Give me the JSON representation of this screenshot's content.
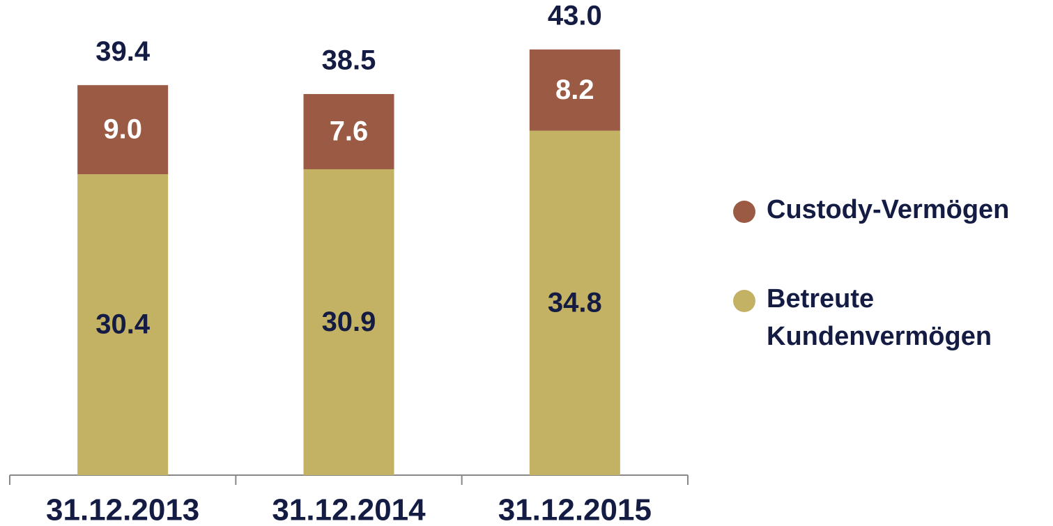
{
  "chart_data": {
    "type": "stacked_bar",
    "categories": [
      "31.12.2013",
      "31.12.2014",
      "31.12.2015"
    ],
    "series": [
      {
        "name": "Custody-Vermögen",
        "color": "#9b5a43",
        "values": [
          9.0,
          7.6,
          8.2
        ],
        "value_labels": [
          "9.0",
          "7.6",
          "8.2"
        ]
      },
      {
        "name": "Betreute Kundenvermögen",
        "color": "#c4b264",
        "values": [
          30.4,
          30.9,
          34.8
        ],
        "value_labels": [
          "30.4",
          "30.9",
          "34.8"
        ]
      }
    ],
    "totals": [
      39.4,
      38.5,
      43.0
    ],
    "total_labels": [
      "39.4",
      "38.5",
      "43.0"
    ],
    "ylim": [
      0,
      48
    ],
    "legend": "right"
  }
}
